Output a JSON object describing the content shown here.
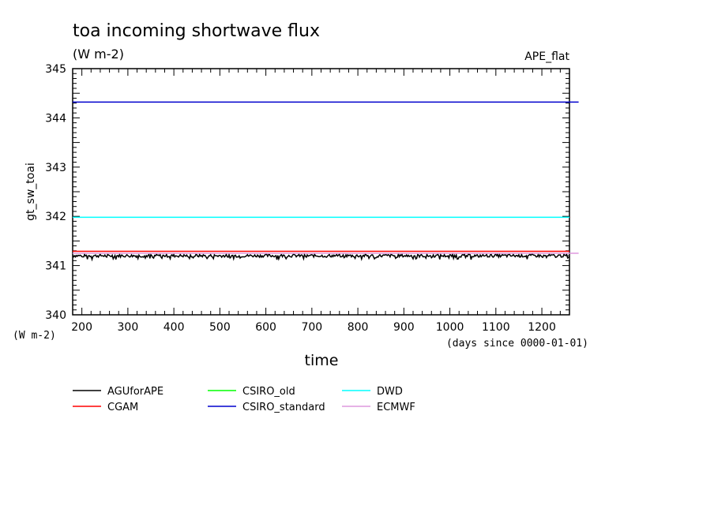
{
  "chart_data": {
    "type": "line",
    "title": "toa incoming shortwave flux",
    "units": "(W m-2)",
    "experiment": "APE_flat",
    "ylabel": "gt_sw_toai",
    "yunits": "(W m-2)",
    "xlabel": "time",
    "xunits": "(days since 0000-01-01)",
    "xlim": [
      180,
      1260
    ],
    "ylim": [
      340,
      345
    ],
    "xticks": [
      200,
      300,
      400,
      500,
      600,
      700,
      800,
      900,
      1000,
      1100,
      1200
    ],
    "yticks": [
      340,
      341,
      342,
      343,
      344,
      345
    ],
    "grid": false,
    "legend_position": "bottom",
    "series": [
      {
        "name": "AGUforAPE",
        "color": "#000000",
        "x": [
          180,
          1260
        ],
        "y": [
          341.2,
          341.2
        ],
        "noisy": true
      },
      {
        "name": "CGAM",
        "color": "#ff0000",
        "x": [
          180,
          1260
        ],
        "y": [
          341.29,
          341.29
        ]
      },
      {
        "name": "CSIRO_old",
        "color": "#00ff00",
        "x": [],
        "y": []
      },
      {
        "name": "CSIRO_standard",
        "color": "#0000cd",
        "x": [
          180,
          1280
        ],
        "y": [
          344.32,
          344.32
        ]
      },
      {
        "name": "DWD",
        "color": "#00ffff",
        "x": [
          180,
          1260
        ],
        "y": [
          341.98,
          341.98
        ]
      },
      {
        "name": "ECMWF",
        "color": "#dd99dd",
        "x": [
          180,
          1280
        ],
        "y": [
          341.25,
          341.25
        ]
      }
    ]
  }
}
